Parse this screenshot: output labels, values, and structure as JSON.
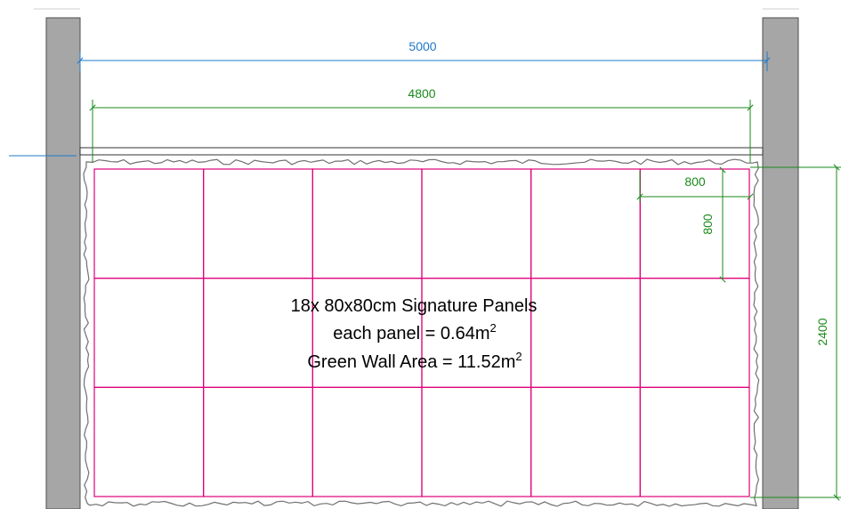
{
  "dimensions": {
    "overall_width": "5000",
    "wall_width": "4800",
    "panel_width": "800",
    "panel_height": "800",
    "wall_height": "2400"
  },
  "panels": {
    "rows": 3,
    "columns": 6
  },
  "notes": {
    "line1": "18x 80x80cm Signature Panels",
    "line2_text": "each panel = 0.64m",
    "line2_sup": "2",
    "line3_text": "Green Wall Area = 11.52m",
    "line3_sup": "2"
  },
  "colors": {
    "column_fill": "#a6a6a6",
    "column_stroke": "#4d4d4d",
    "overall_dim": "#1f78c8",
    "dims": "#1a8a1a",
    "panel_grid": "#e0007a",
    "foliage_outline": "#707070"
  }
}
